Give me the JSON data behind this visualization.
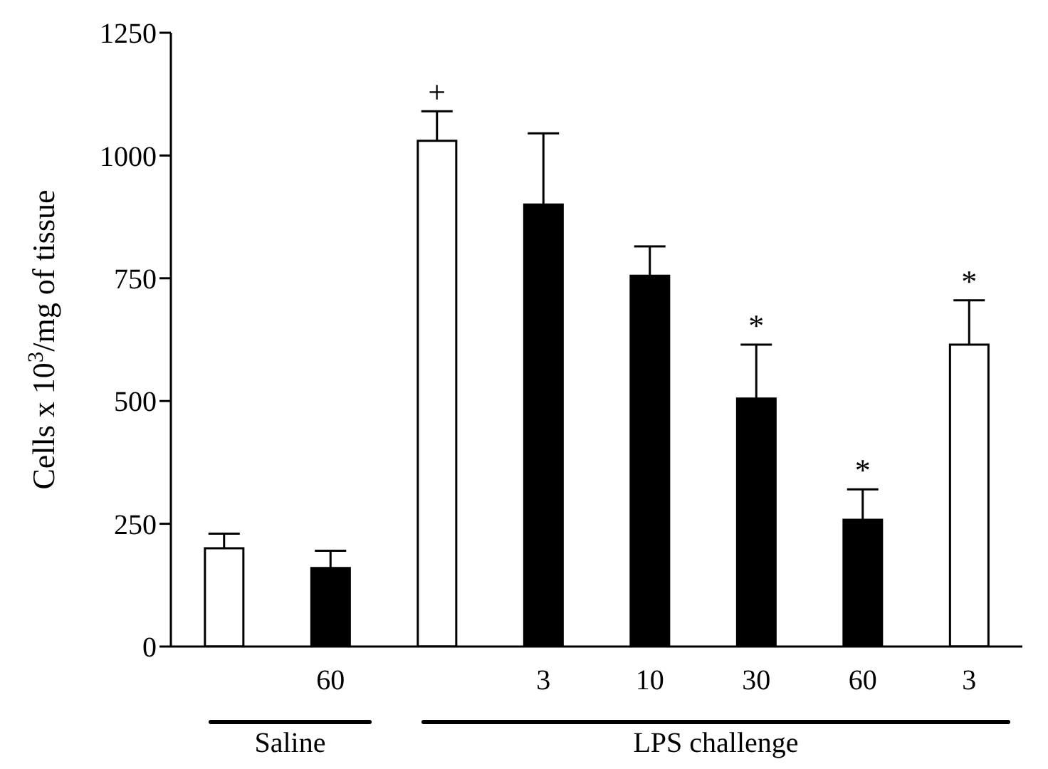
{
  "chart_data": {
    "type": "bar",
    "ylabel": "Cells x 10$^{3}$/mg of tissue",
    "categories": [
      null,
      "60",
      null,
      "3",
      "10",
      "30",
      "60",
      "3"
    ],
    "values": [
      200,
      160,
      1030,
      900,
      755,
      505,
      258,
      615
    ],
    "colors": [
      "#ffffff",
      "#000000",
      "#ffffff",
      "#000000",
      "#000000",
      "#000000",
      "#000000",
      "#ffffff"
    ],
    "errors": [
      [
        200,
        230
      ],
      [
        160,
        195
      ],
      [
        1030,
        1090
      ],
      [
        900,
        1045
      ],
      [
        755,
        815
      ],
      [
        505,
        615
      ],
      [
        258,
        320
      ],
      [
        615,
        705
      ]
    ],
    "ylim": [
      0,
      1250
    ],
    "yticks": [
      0,
      250,
      500,
      750,
      1000,
      1250
    ],
    "annotations": [
      "+",
      "*",
      "*",
      "*",
      "Saline",
      "LPS challenge"
    ]
  }
}
